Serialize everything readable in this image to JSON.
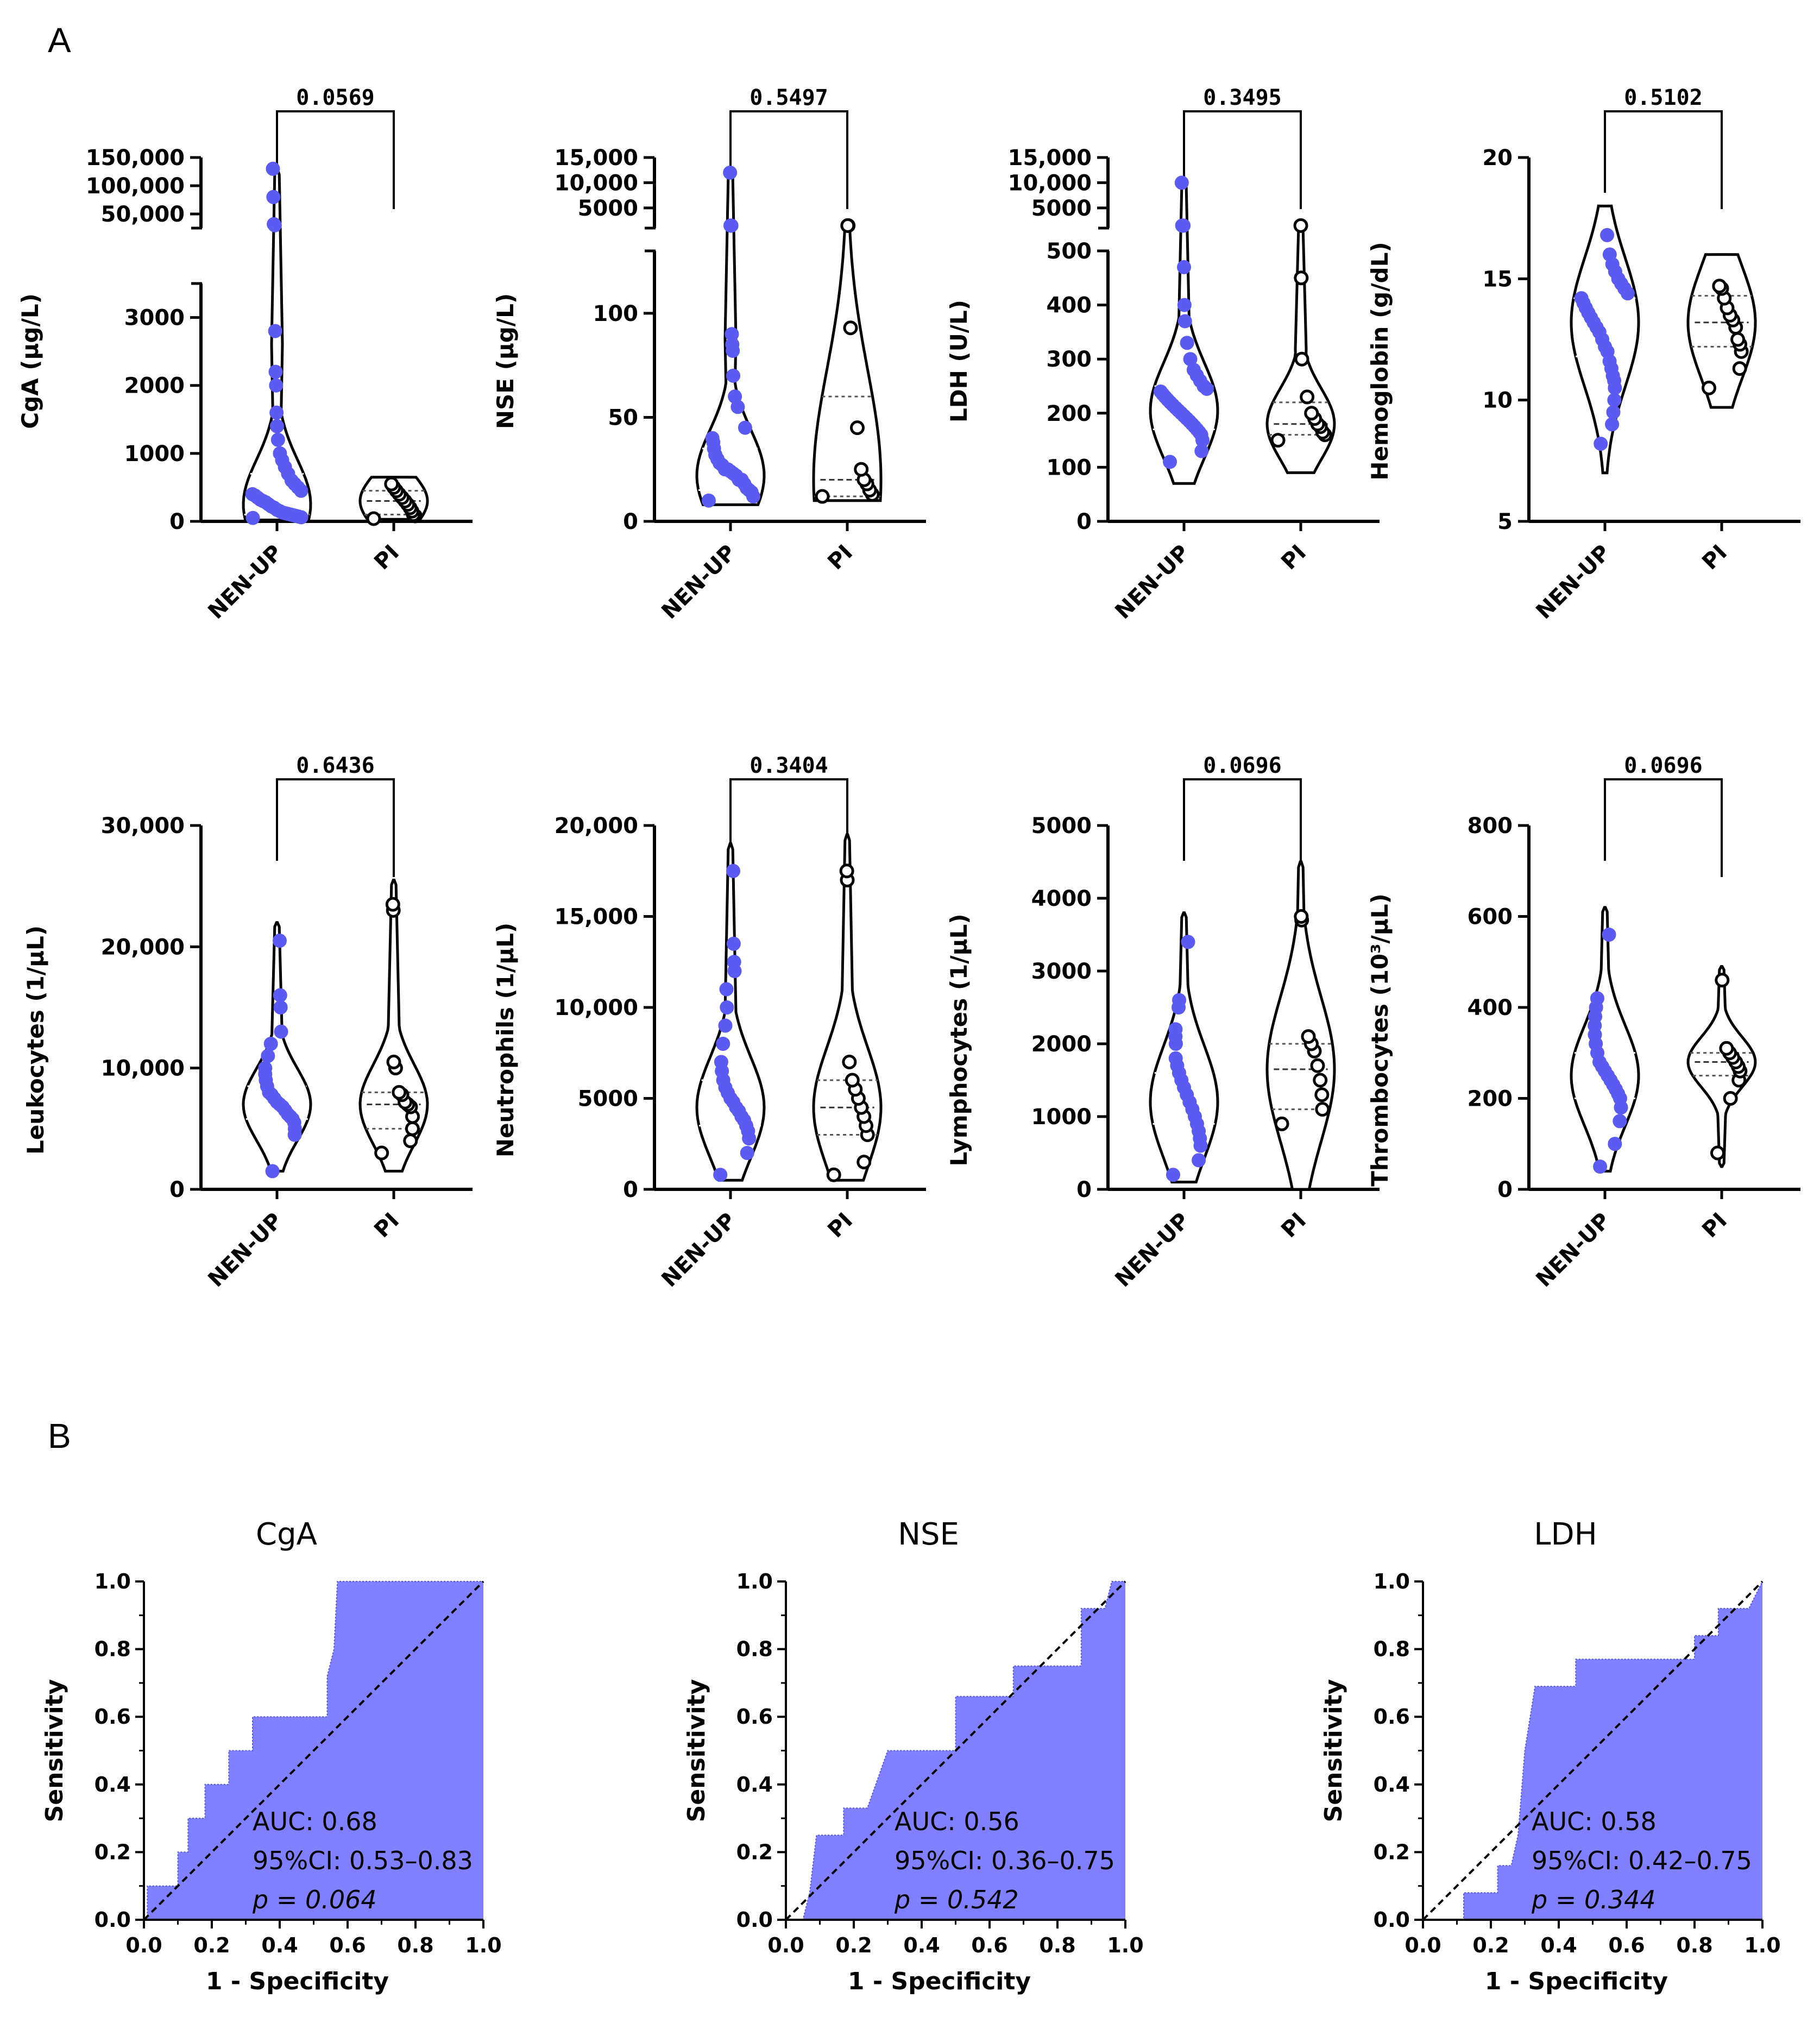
{
  "panels": {
    "a": "A",
    "b": "B"
  },
  "colors": {
    "nen": "#5b5bf2",
    "pi": "#000000",
    "roc_fill": "#8080ff"
  },
  "chart_data": [
    {
      "type": "violin",
      "id": "cga",
      "ylabel": "CgA (µg/L)",
      "categories": [
        "NEN-UP",
        "PI"
      ],
      "pvalue": "0.0569",
      "broken_axis": true,
      "lower_range": [
        0,
        3500
      ],
      "lower_ticks": [
        0,
        1000,
        2000,
        3000
      ],
      "upper_range": [
        25000,
        150000
      ],
      "upper_ticks": [
        50000,
        100000,
        150000
      ],
      "lower_tick_labels": [
        "0",
        "1000",
        "2000",
        "3000"
      ],
      "upper_tick_labels": [
        "50,000",
        "100,000",
        "150,000"
      ],
      "series": [
        {
          "name": "NEN-UP",
          "median": 250,
          "q1": 100,
          "q3": 700,
          "min": 20,
          "max": 130000,
          "points": [
            50,
            60,
            70,
            80,
            90,
            100,
            110,
            120,
            130,
            150,
            170,
            200,
            220,
            250,
            280,
            300,
            320,
            350,
            380,
            400,
            450,
            500,
            550,
            600,
            700,
            800,
            900,
            1000,
            1200,
            1400,
            1600,
            2000,
            2200,
            2800,
            30000,
            31000,
            32000,
            80000,
            130000
          ]
        },
        {
          "name": "PI",
          "median": 300,
          "q1": 100,
          "q3": 450,
          "min": 30,
          "max": 650,
          "points": [
            40,
            80,
            100,
            150,
            200,
            250,
            300,
            350,
            400,
            450,
            500,
            550
          ]
        }
      ]
    },
    {
      "type": "violin",
      "id": "nse",
      "ylabel": "NSE (µg/L)",
      "categories": [
        "NEN-UP",
        "PI"
      ],
      "pvalue": "0.5497",
      "broken_axis": true,
      "lower_range": [
        0,
        130
      ],
      "lower_ticks": [
        0,
        50,
        100
      ],
      "upper_range": [
        1000,
        15000
      ],
      "upper_ticks": [
        5000,
        10000,
        15000
      ],
      "lower_tick_labels": [
        "0",
        "50",
        "100"
      ],
      "upper_tick_labels": [
        "5000",
        "10,000",
        "15,000"
      ],
      "series": [
        {
          "name": "NEN-UP",
          "median": 22,
          "q1": 15,
          "q3": 35,
          "min": 8,
          "max": 12000,
          "points": [
            10,
            12,
            14,
            15,
            16,
            18,
            20,
            20,
            22,
            23,
            24,
            25,
            25,
            27,
            28,
            30,
            32,
            35,
            38,
            40,
            45,
            55,
            60,
            70,
            82,
            85,
            90,
            1500,
            1500,
            1500,
            12000
          ]
        },
        {
          "name": "PI",
          "median": 20,
          "q1": 12,
          "q3": 60,
          "min": 10,
          "max": 1500,
          "points": [
            12,
            13,
            15,
            18,
            20,
            25,
            45,
            93,
            1500,
            1500
          ]
        }
      ]
    },
    {
      "type": "violin",
      "id": "ldh",
      "ylabel": "LDH (U/L)",
      "categories": [
        "NEN-UP",
        "PI"
      ],
      "pvalue": "0.3495",
      "broken_axis": true,
      "lower_range": [
        0,
        500
      ],
      "lower_ticks": [
        0,
        100,
        200,
        300,
        400,
        500
      ],
      "upper_range": [
        1000,
        15000
      ],
      "upper_ticks": [
        5000,
        10000,
        15000
      ],
      "lower_tick_labels": [
        "0",
        "100",
        "200",
        "300",
        "400",
        "500"
      ],
      "upper_tick_labels": [
        "5000",
        "10,000",
        "15,000"
      ],
      "series": [
        {
          "name": "NEN-UP",
          "median": 205,
          "q1": 170,
          "q3": 250,
          "min": 70,
          "max": 10000,
          "points": [
            110,
            130,
            150,
            160,
            165,
            170,
            175,
            180,
            185,
            190,
            195,
            200,
            205,
            210,
            215,
            220,
            225,
            230,
            235,
            240,
            245,
            250,
            260,
            270,
            280,
            300,
            330,
            370,
            400,
            470,
            1500,
            1500,
            1500,
            1500,
            10000
          ]
        },
        {
          "name": "PI",
          "median": 180,
          "q1": 160,
          "q3": 220,
          "min": 90,
          "max": 1500,
          "points": [
            150,
            160,
            165,
            175,
            180,
            190,
            200,
            230,
            300,
            450,
            1500
          ]
        }
      ]
    },
    {
      "type": "violin",
      "id": "hb",
      "ylabel": "Hemoglobin (g/dL)",
      "categories": [
        "NEN-UP",
        "PI"
      ],
      "pvalue": "0.5102",
      "broken_axis": false,
      "range": [
        5,
        20
      ],
      "ticks": [
        5,
        10,
        15,
        20
      ],
      "tick_labels": [
        "5",
        "10",
        "15",
        "20"
      ],
      "series": [
        {
          "name": "NEN-UP",
          "median": 13.2,
          "q1": 11.8,
          "q3": 14.2,
          "min": 7,
          "max": 18,
          "points": [
            8.2,
            9,
            9.5,
            10,
            10.5,
            10.8,
            11,
            11.3,
            11.6,
            12,
            12.2,
            12.5,
            12.8,
            13,
            13.2,
            13.4,
            13.6,
            13.8,
            14,
            14.2,
            14.4,
            14.6,
            14.8,
            15,
            15.3,
            15.6,
            16,
            16.8
          ]
        },
        {
          "name": "PI",
          "median": 13.2,
          "q1": 12.2,
          "q3": 14.3,
          "min": 9.7,
          "max": 16,
          "points": [
            10.5,
            11.3,
            12,
            12.3,
            12.5,
            13,
            13.3,
            13.5,
            13.8,
            14.2,
            14.6,
            14.7
          ]
        }
      ]
    },
    {
      "type": "violin",
      "id": "leuko",
      "ylabel": "Leukocytes (1/µL)",
      "categories": [
        "NEN-UP",
        "PI"
      ],
      "pvalue": "0.6436",
      "broken_axis": false,
      "range": [
        0,
        30000
      ],
      "ticks": [
        0,
        10000,
        20000,
        30000
      ],
      "tick_labels": [
        "0",
        "10,000",
        "20,000",
        "30,000"
      ],
      "series": [
        {
          "name": "NEN-UP",
          "median": 7000,
          "q1": 5800,
          "q3": 8500,
          "min": 1500,
          "max": 22000,
          "points": [
            1500,
            4500,
            5000,
            5500,
            5800,
            6000,
            6200,
            6500,
            6800,
            7000,
            7200,
            7500,
            7800,
            8000,
            8500,
            9000,
            9500,
            10000,
            11000,
            12000,
            13000,
            15000,
            16000,
            20500
          ]
        },
        {
          "name": "PI",
          "median": 7000,
          "q1": 5000,
          "q3": 8000,
          "min": 1500,
          "max": 25500,
          "points": [
            3000,
            4000,
            5000,
            6000,
            6800,
            7000,
            7200,
            7800,
            8000,
            10000,
            10500,
            23000,
            23500
          ]
        }
      ]
    },
    {
      "type": "violin",
      "id": "neutro",
      "ylabel": "Neutrophils (1/µL)",
      "categories": [
        "NEN-UP",
        "PI"
      ],
      "pvalue": "0.3404",
      "broken_axis": false,
      "range": [
        0,
        20000
      ],
      "ticks": [
        0,
        5000,
        10000,
        15000,
        20000
      ],
      "tick_labels": [
        "0",
        "5000",
        "10,000",
        "15,000",
        "20,000"
      ],
      "series": [
        {
          "name": "NEN-UP",
          "median": 4500,
          "q1": 3500,
          "q3": 6000,
          "min": 500,
          "max": 19000,
          "points": [
            800,
            2000,
            2800,
            3200,
            3500,
            3800,
            4000,
            4300,
            4500,
            4800,
            5000,
            5300,
            5600,
            6000,
            6500,
            7000,
            8000,
            9000,
            10000,
            11000,
            12000,
            12500,
            13500,
            17500
          ]
        },
        {
          "name": "PI",
          "median": 4500,
          "q1": 3000,
          "q3": 6000,
          "min": 500,
          "max": 19500,
          "points": [
            800,
            1500,
            3000,
            3500,
            4000,
            4500,
            5000,
            5500,
            6000,
            7000,
            17000,
            17500
          ]
        }
      ]
    },
    {
      "type": "violin",
      "id": "lympho",
      "ylabel": "Lymphocytes (1/µL)",
      "categories": [
        "NEN-UP",
        "PI"
      ],
      "pvalue": "0.0696",
      "broken_axis": false,
      "range": [
        0,
        5000
      ],
      "ticks": [
        0,
        1000,
        2000,
        3000,
        4000,
        5000
      ],
      "tick_labels": [
        "0",
        "1000",
        "2000",
        "3000",
        "4000",
        "5000"
      ],
      "series": [
        {
          "name": "NEN-UP",
          "median": 1200,
          "q1": 900,
          "q3": 1600,
          "min": 100,
          "max": 3800,
          "points": [
            200,
            400,
            600,
            700,
            800,
            900,
            1000,
            1100,
            1200,
            1300,
            1400,
            1500,
            1600,
            1700,
            1800,
            2000,
            2100,
            2200,
            2500,
            2600,
            3400
          ]
        },
        {
          "name": "PI",
          "median": 1650,
          "q1": 1100,
          "q3": 2000,
          "min": 0,
          "max": 4500,
          "points": [
            900,
            1100,
            1300,
            1500,
            1700,
            1900,
            2000,
            2100,
            3700,
            3750
          ]
        }
      ]
    },
    {
      "type": "violin",
      "id": "thrombo",
      "ylabel": "Thrombocytes (10³/µL)",
      "categories": [
        "NEN-UP",
        "PI"
      ],
      "pvalue": "0.0696",
      "broken_axis": false,
      "range": [
        0,
        800
      ],
      "ticks": [
        0,
        200,
        400,
        600,
        800
      ],
      "tick_labels": [
        "0",
        "200",
        "400",
        "600",
        "800"
      ],
      "series": [
        {
          "name": "NEN-UP",
          "median": 250,
          "q1": 200,
          "q3": 300,
          "min": 40,
          "max": 620,
          "points": [
            50,
            100,
            150,
            180,
            200,
            210,
            220,
            230,
            240,
            250,
            260,
            270,
            280,
            300,
            320,
            340,
            360,
            380,
            400,
            420,
            560
          ]
        },
        {
          "name": "PI",
          "median": 280,
          "q1": 250,
          "q3": 300,
          "min": 50,
          "max": 490,
          "points": [
            80,
            200,
            240,
            260,
            270,
            280,
            290,
            300,
            310,
            460
          ]
        }
      ]
    },
    {
      "type": "roc",
      "id": "roc-cga",
      "title": "CgA",
      "xlabel": "1 - Specificity",
      "ylabel": "Sensitivity",
      "xlim": [
        0,
        1
      ],
      "ylim": [
        0,
        1
      ],
      "ticks": [
        0,
        0.2,
        0.4,
        0.6,
        0.8,
        1.0
      ],
      "tick_labels": [
        "0.0",
        "0.2",
        "0.4",
        "0.6",
        "0.8",
        "1.0"
      ],
      "annotation": [
        "AUC: 0.68",
        "95%CI: 0.53–0.83",
        "p = 0.064"
      ],
      "curve": [
        [
          0,
          0
        ],
        [
          0.01,
          0
        ],
        [
          0.01,
          0.1
        ],
        [
          0.1,
          0.1
        ],
        [
          0.1,
          0.2
        ],
        [
          0.13,
          0.2
        ],
        [
          0.13,
          0.3
        ],
        [
          0.18,
          0.3
        ],
        [
          0.18,
          0.4
        ],
        [
          0.25,
          0.4
        ],
        [
          0.25,
          0.5
        ],
        [
          0.32,
          0.5
        ],
        [
          0.32,
          0.6
        ],
        [
          0.54,
          0.6
        ],
        [
          0.54,
          0.72
        ],
        [
          0.56,
          0.8
        ],
        [
          0.57,
          1.0
        ],
        [
          1.0,
          1.0
        ]
      ]
    },
    {
      "type": "roc",
      "id": "roc-nse",
      "title": "NSE",
      "xlabel": "1 - Specificity",
      "ylabel": "Sensitivity",
      "xlim": [
        0,
        1
      ],
      "ylim": [
        0,
        1
      ],
      "ticks": [
        0,
        0.2,
        0.4,
        0.6,
        0.8,
        1.0
      ],
      "tick_labels": [
        "0.0",
        "0.2",
        "0.4",
        "0.6",
        "0.8",
        "1.0"
      ],
      "annotation": [
        "AUC: 0.56",
        "95%CI: 0.36–0.75",
        "p = 0.542"
      ],
      "curve": [
        [
          0,
          0
        ],
        [
          0.05,
          0
        ],
        [
          0.07,
          0.08
        ],
        [
          0.09,
          0.25
        ],
        [
          0.17,
          0.25
        ],
        [
          0.17,
          0.33
        ],
        [
          0.24,
          0.33
        ],
        [
          0.3,
          0.5
        ],
        [
          0.5,
          0.5
        ],
        [
          0.5,
          0.66
        ],
        [
          0.67,
          0.66
        ],
        [
          0.67,
          0.75
        ],
        [
          0.87,
          0.75
        ],
        [
          0.87,
          0.92
        ],
        [
          0.94,
          0.92
        ],
        [
          0.96,
          1.0
        ],
        [
          1.0,
          1.0
        ]
      ]
    },
    {
      "type": "roc",
      "id": "roc-ldh",
      "title": "LDH",
      "xlabel": "1 - Specificity",
      "ylabel": "Sensitivity",
      "xlim": [
        0,
        1
      ],
      "ylim": [
        0,
        1
      ],
      "ticks": [
        0,
        0.2,
        0.4,
        0.6,
        0.8,
        1.0
      ],
      "tick_labels": [
        "0.0",
        "0.2",
        "0.4",
        "0.6",
        "0.8",
        "1.0"
      ],
      "annotation": [
        "AUC: 0.58",
        "95%CI: 0.42–0.75",
        "p = 0.344"
      ],
      "curve": [
        [
          0,
          0
        ],
        [
          0.12,
          0
        ],
        [
          0.12,
          0.08
        ],
        [
          0.22,
          0.08
        ],
        [
          0.22,
          0.16
        ],
        [
          0.26,
          0.16
        ],
        [
          0.28,
          0.25
        ],
        [
          0.3,
          0.5
        ],
        [
          0.33,
          0.69
        ],
        [
          0.45,
          0.69
        ],
        [
          0.45,
          0.77
        ],
        [
          0.8,
          0.77
        ],
        [
          0.8,
          0.84
        ],
        [
          0.87,
          0.84
        ],
        [
          0.87,
          0.92
        ],
        [
          0.96,
          0.92
        ],
        [
          1.0,
          1.0
        ]
      ]
    }
  ]
}
